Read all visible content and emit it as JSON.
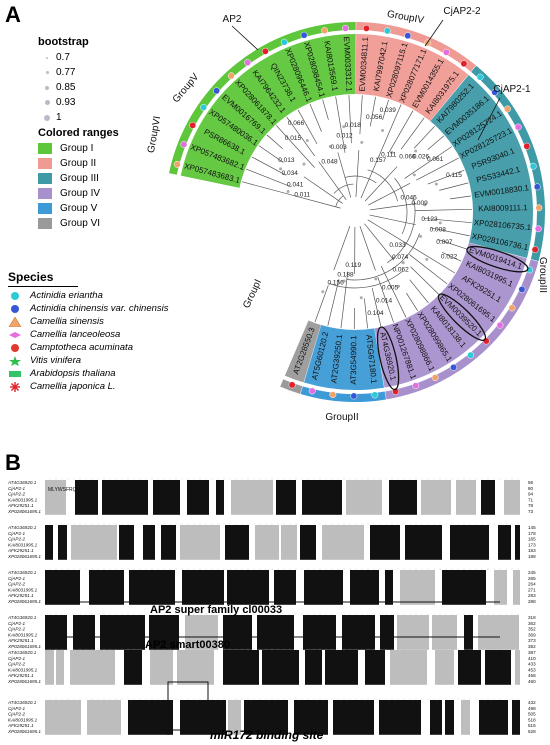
{
  "panel_a_label": "A",
  "panel_b_label": "B",
  "bootstrap": {
    "title": "bootstrap",
    "values": [
      "0.7",
      "0.77",
      "0.85",
      "0.93",
      "1"
    ]
  },
  "colored_ranges": {
    "title": "Colored ranges",
    "items": [
      {
        "label": "Group I",
        "color": "#5ec63a"
      },
      {
        "label": "Group II",
        "color": "#f09a94"
      },
      {
        "label": "Group III",
        "color": "#3e9aa6"
      },
      {
        "label": "Group IV",
        "color": "#a890cc"
      },
      {
        "label": "Group V",
        "color": "#3d9ad6"
      },
      {
        "label": "Group VI",
        "color": "#9a9a9a"
      }
    ]
  },
  "species": {
    "title": "Species",
    "items": [
      {
        "label": "Actinidia eriantha",
        "marker": "cyan-circle-icon"
      },
      {
        "label": "Actinidia chinensis var. chinensis",
        "marker": "blue-circle-icon"
      },
      {
        "label": "Camellia sinensis",
        "marker": "orange-triangle-icon"
      },
      {
        "label": "Camellia lanceoleosa",
        "marker": "pink-diamond-icon"
      },
      {
        "label": "Camptotheca acuminata",
        "marker": "red-circle-icon"
      },
      {
        "label": "Vitis vinifera",
        "marker": "green-star-icon"
      },
      {
        "label": "Arabidopsis thaliana",
        "marker": "green-rect-icon"
      },
      {
        "label": "Camellia japonica L.",
        "marker": "red-asterisk-icon"
      }
    ]
  },
  "tree": {
    "group_labels": [
      "GroupI",
      "GroupII",
      "GroupIII",
      "GroupIV",
      "GroupV",
      "GroupVI"
    ],
    "callouts": [
      "AP2",
      "CjAP2-2",
      "CjAP2-1"
    ],
    "leaves": [
      {
        "id": "XP057483683.1",
        "group": "I"
      },
      {
        "id": "XP057483682.1",
        "group": "I"
      },
      {
        "id": "PSR86638.1",
        "group": "I"
      },
      {
        "id": "XP057480036.1",
        "group": "I"
      },
      {
        "id": "EVM0016769.1",
        "group": "I"
      },
      {
        "id": "XP028061878.1",
        "group": "I"
      },
      {
        "id": "KAI7964232.1",
        "group": "I"
      },
      {
        "id": "QIN23738.1",
        "group": "I"
      },
      {
        "id": "XP028096446.1",
        "group": "I"
      },
      {
        "id": "XP028098454.1",
        "group": "I"
      },
      {
        "id": "KAI8013569.1",
        "group": "I"
      },
      {
        "id": "EVM0033312.1",
        "group": "I"
      },
      {
        "id": "EVM0034811.1",
        "group": "II"
      },
      {
        "id": "KAI7997042.1",
        "group": "II"
      },
      {
        "id": "XP028097115.1",
        "group": "II"
      },
      {
        "id": "XP028077171.1",
        "group": "II"
      },
      {
        "id": "EVM0014355.1",
        "group": "II"
      },
      {
        "id": "KAI8031975.1",
        "group": "II"
      },
      {
        "id": "KAI7980252.1",
        "group": "III"
      },
      {
        "id": "EVM0035186.1",
        "group": "III"
      },
      {
        "id": "XP028125724.1",
        "group": "III"
      },
      {
        "id": "XP028125723.1",
        "group": "III"
      },
      {
        "id": "PSR93040.1",
        "group": "III"
      },
      {
        "id": "PSS33442.1",
        "group": "III"
      },
      {
        "id": "EVM0018830.1",
        "group": "III"
      },
      {
        "id": "KAI8009111.1",
        "group": "III"
      },
      {
        "id": "XP028106735.1",
        "group": "III"
      },
      {
        "id": "XP028106736.1",
        "group": "III"
      },
      {
        "id": "EVM0019414.1",
        "group": "IV"
      },
      {
        "id": "KAI8031995.1",
        "group": "IV"
      },
      {
        "id": "AFK29251.1",
        "group": "IV"
      },
      {
        "id": "XP028061695.1",
        "group": "IV"
      },
      {
        "id": "EVM0039520.1",
        "group": "IV"
      },
      {
        "id": "KAI8018138.1",
        "group": "IV"
      },
      {
        "id": "XP028099865.1",
        "group": "IV"
      },
      {
        "id": "XP028098866.1",
        "group": "IV"
      },
      {
        "id": "NP001267881.1",
        "group": "IV"
      },
      {
        "id": "AT4G36920.1",
        "group": "IV"
      },
      {
        "id": "AT5G67180.1",
        "group": "V"
      },
      {
        "id": "AT3G54990.1",
        "group": "V"
      },
      {
        "id": "AT2G39250.1",
        "group": "V"
      },
      {
        "id": "AT5G60120.2",
        "group": "V"
      },
      {
        "id": "AT2G28550.3",
        "group": "VI"
      }
    ],
    "branch_values": [
      "0.011",
      "0.041",
      "0.034",
      "0.013",
      "0.015",
      "0.066",
      "0.048",
      "0.003",
      "0.012",
      "0.018",
      "0.056",
      "0.039",
      "0.157",
      "0.111",
      "0.066",
      "0.026",
      "0.061",
      "0.115",
      "0.045",
      "0.009",
      "0.123",
      "0.008",
      "0.007",
      "0.022",
      "0.033",
      "0.074",
      "0.062",
      "0.005",
      "0.014",
      "0.104",
      "0.119",
      "0.188",
      "0.156"
    ]
  },
  "alignment": {
    "seq_names": [
      "AT4G36920.1",
      "CjAP2-1",
      "CjAP2-2",
      "KAI8031995.1",
      "AFK29251.1",
      "XP028061695.1"
    ],
    "blocks": [
      {
        "ends": [
          "56",
          "80",
          "94",
          "71",
          "78",
          "73"
        ]
      },
      {
        "ends": [
          "145",
          "178",
          "165",
          "173",
          "183",
          "188"
        ]
      },
      {
        "ends": [
          "245",
          "265",
          "264",
          "271",
          "283",
          "288"
        ]
      },
      {
        "ends": [
          "318",
          "362",
          "352",
          "369",
          "373",
          "382"
        ]
      },
      {
        "ends": [
          "387",
          "410",
          "433",
          "453",
          "458",
          "460"
        ]
      },
      {
        "ends": [
          "432",
          "498",
          "505",
          "518",
          "516",
          "528"
        ]
      }
    ],
    "annotations": {
      "ap2_family": "AP2 super family cl00033",
      "ap2_smart": "AP2 smart00380",
      "mir172": "miR172 binding site"
    },
    "first_row_text": "MLYWSFRQGR"
  }
}
